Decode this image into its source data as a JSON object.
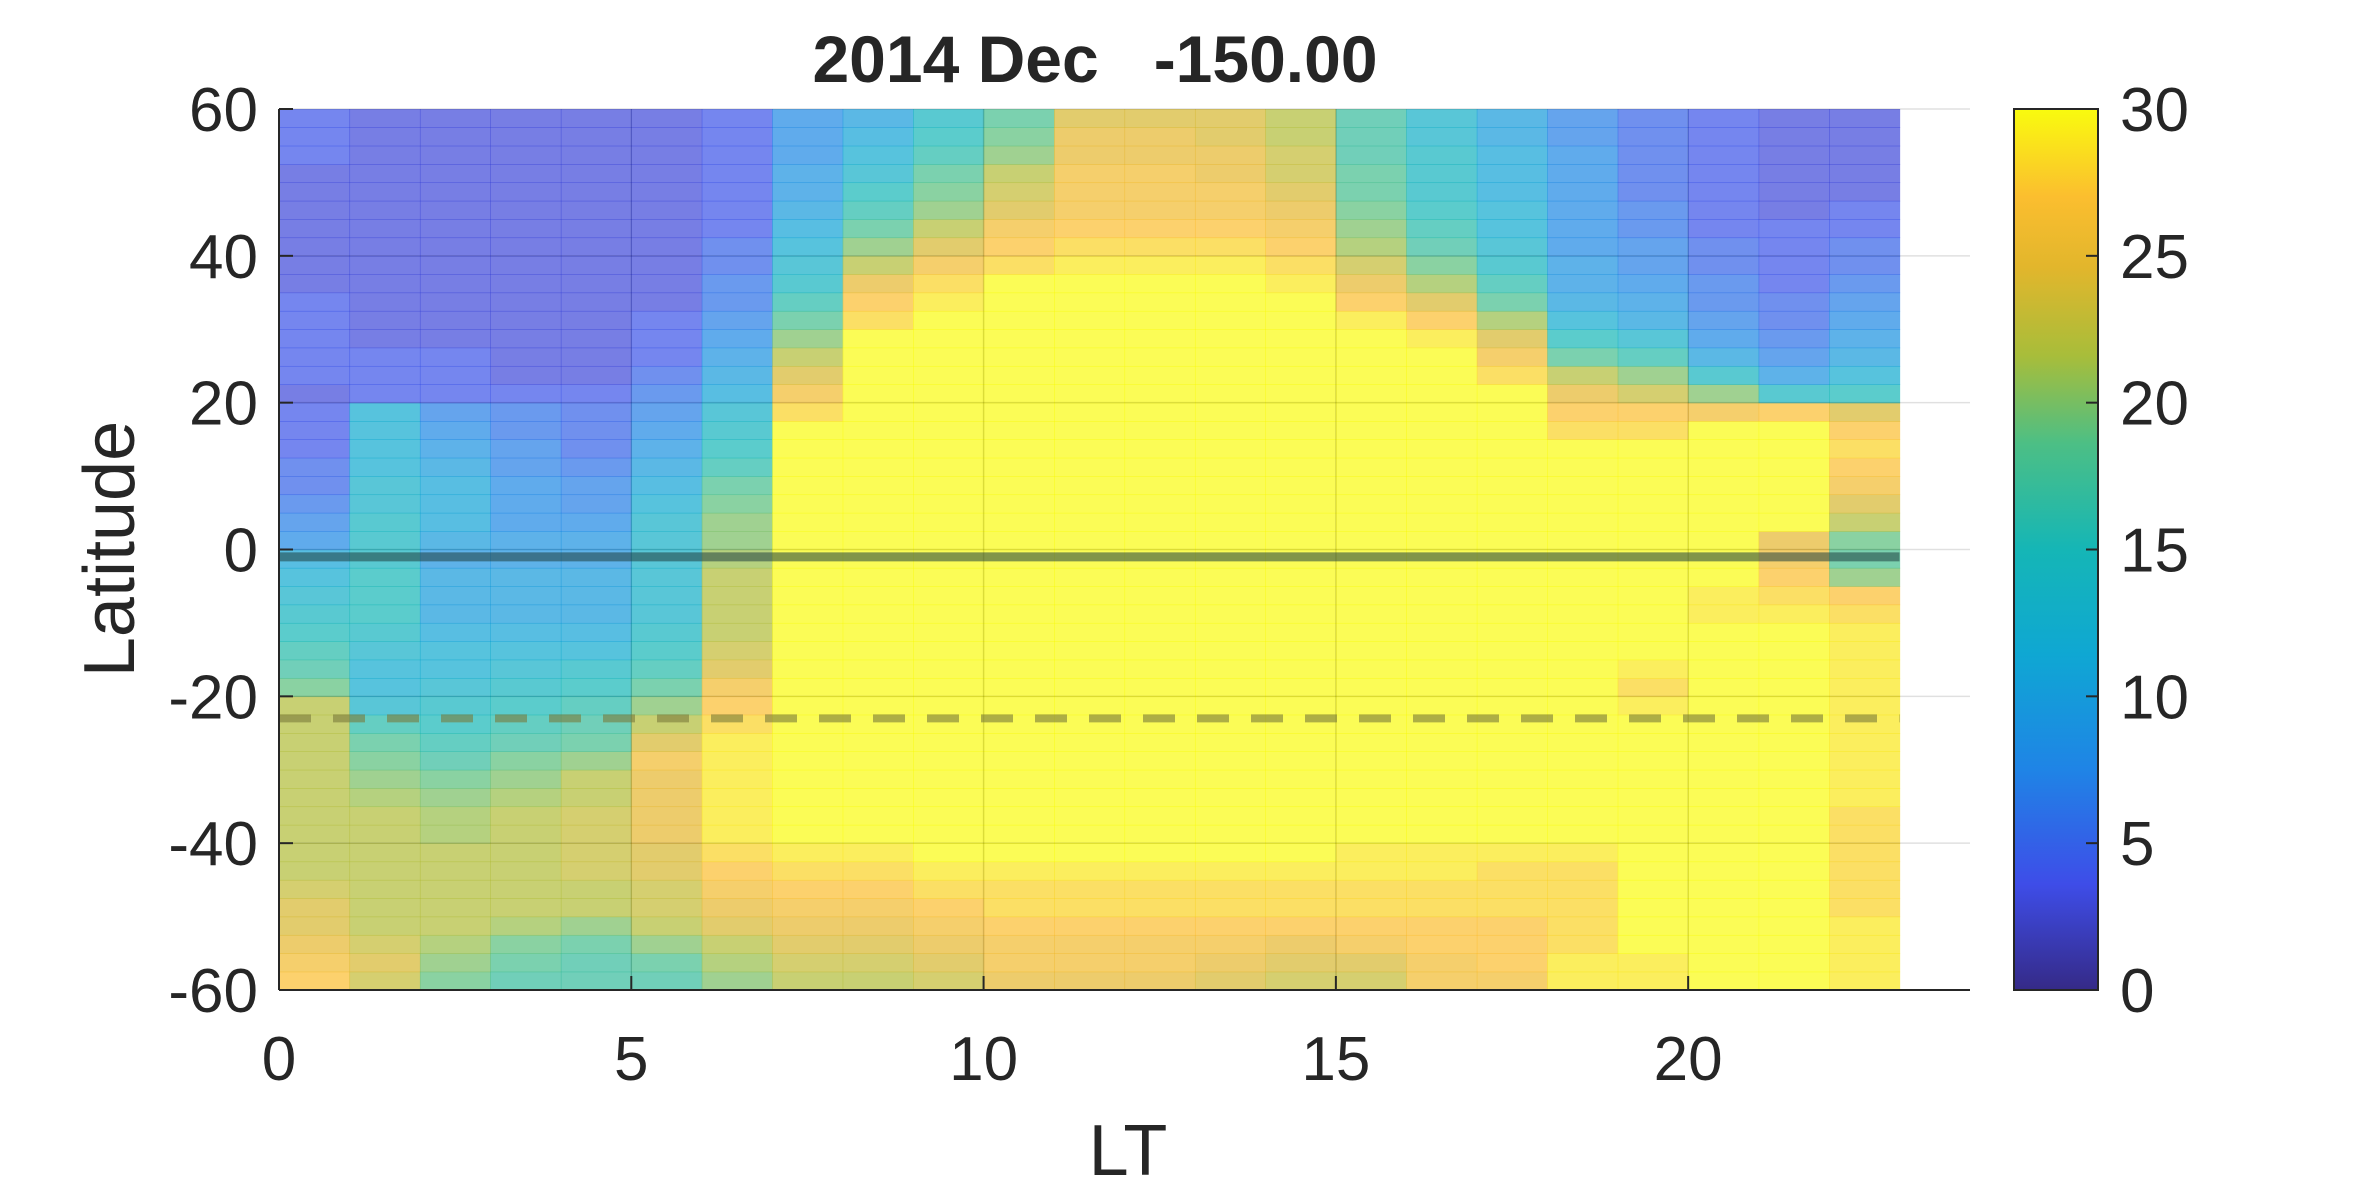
{
  "chart_data": {
    "type": "heatmap",
    "title": "2014 Dec   -150.00",
    "xlabel": "LT",
    "ylabel": "Latitude",
    "xlim": [
      0,
      24
    ],
    "ylim": [
      -60,
      60
    ],
    "x_ticks": [
      "0",
      "5",
      "10",
      "15",
      "20"
    ],
    "y_ticks": [
      "60",
      "40",
      "20",
      "0",
      "-20",
      "-40",
      "-60"
    ],
    "x_tick_values": [
      0,
      5,
      10,
      15,
      20
    ],
    "y_tick_values": [
      60,
      40,
      20,
      0,
      -20,
      -40,
      -60
    ],
    "x_bin_edges": [
      0,
      1,
      2,
      3,
      4,
      5,
      6,
      7,
      8,
      9,
      10,
      11,
      12,
      13,
      14,
      15,
      16,
      17,
      18,
      19,
      20,
      21,
      22,
      23
    ],
    "lat_bin_edges": [
      -60,
      55
    ],
    "grid": true,
    "colormap": "parula",
    "colorbar": {
      "min": 0,
      "max": 30,
      "ticks": [
        "0",
        "5",
        "10",
        "15",
        "20",
        "25",
        "30"
      ],
      "tick_values": [
        0,
        5,
        10,
        15,
        20,
        25,
        30
      ]
    },
    "reference_lines": [
      {
        "latitude": -1,
        "style": "solid",
        "color": "#1f3f3f"
      },
      {
        "latitude": -23,
        "style": "dashed",
        "color": "#7a7a3a"
      }
    ],
    "columns": [
      {
        "lt": 0,
        "values": [
          27,
          26,
          25,
          24,
          24,
          23,
          22,
          22,
          22,
          22,
          22,
          22,
          22,
          22,
          22,
          22,
          19,
          17,
          16,
          15,
          14,
          13,
          12,
          11,
          8,
          7,
          6,
          5,
          5,
          4,
          4,
          4,
          3,
          4,
          4,
          4,
          4,
          4,
          3,
          3,
          3,
          3,
          3,
          3,
          3,
          4,
          4,
          4
        ]
      },
      {
        "lt": 1,
        "values": [
          23,
          24,
          23,
          22,
          22,
          22,
          22,
          22,
          22,
          22,
          21,
          20,
          19,
          18,
          16,
          13,
          12,
          12,
          13,
          14,
          15,
          15,
          15,
          14,
          14,
          14,
          13,
          13,
          12,
          12,
          12,
          12,
          4,
          4,
          4,
          3,
          3,
          3,
          3,
          3,
          3,
          3,
          3,
          3,
          3,
          3,
          3,
          3
        ]
      },
      {
        "lt": 2,
        "values": [
          19,
          20,
          21,
          22,
          22,
          22,
          22,
          22,
          21,
          21,
          20,
          19,
          17,
          16,
          15,
          14,
          13,
          12,
          12,
          11,
          10,
          10,
          10,
          9,
          10,
          11,
          11,
          11,
          10,
          9,
          8,
          7,
          4,
          4,
          4,
          3,
          3,
          3,
          3,
          3,
          3,
          3,
          3,
          3,
          3,
          3,
          3,
          3
        ]
      },
      {
        "lt": 3,
        "values": [
          17,
          18,
          19,
          21,
          22,
          22,
          22,
          22,
          22,
          22,
          21,
          20,
          19,
          17,
          16,
          15,
          14,
          13,
          12,
          11,
          10,
          10,
          10,
          9,
          9,
          8,
          8,
          8,
          7,
          7,
          6,
          6,
          4,
          3,
          3,
          3,
          3,
          3,
          3,
          3,
          3,
          3,
          3,
          3,
          3,
          3,
          3,
          3
        ]
      },
      {
        "lt": 4,
        "values": [
          17,
          17,
          18,
          20,
          22,
          22,
          23,
          23,
          23,
          23,
          22,
          22,
          20,
          18,
          17,
          16,
          15,
          14,
          12,
          11,
          10,
          10,
          10,
          9,
          9,
          8,
          7,
          7,
          6,
          5,
          5,
          5,
          4,
          3,
          3,
          3,
          3,
          3,
          3,
          3,
          3,
          3,
          3,
          3,
          3,
          3,
          3,
          3
        ]
      },
      {
        "lt": 5,
        "values": [
          17,
          18,
          20,
          22,
          23,
          23,
          24,
          24,
          25,
          25,
          25,
          25,
          26,
          24,
          22,
          20,
          18,
          16,
          15,
          14,
          13,
          13,
          13,
          13,
          13,
          13,
          12,
          11,
          10,
          9,
          8,
          7,
          6,
          5,
          4,
          4,
          4,
          3,
          3,
          3,
          3,
          3,
          3,
          3,
          3,
          3,
          3,
          3
        ]
      },
      {
        "lt": 6,
        "values": [
          20,
          21,
          22,
          24,
          25,
          26,
          27,
          28,
          29,
          29,
          29,
          29,
          29,
          29,
          28,
          27,
          26,
          24,
          23,
          22,
          22,
          22,
          22,
          21,
          20,
          20,
          19,
          18,
          16,
          15,
          14,
          13,
          11,
          10,
          9,
          8,
          7,
          6,
          6,
          5,
          5,
          4,
          4,
          4,
          4,
          4,
          4,
          4
        ]
      },
      {
        "lt": 7,
        "values": [
          22,
          23,
          24,
          25,
          26,
          27,
          28,
          29,
          30,
          30,
          30,
          30,
          30,
          30,
          30,
          30,
          30,
          30,
          30,
          30,
          30,
          30,
          30,
          30,
          30,
          30,
          30,
          30,
          30,
          30,
          30,
          28,
          26,
          24,
          22,
          20,
          18,
          16,
          14,
          13,
          12,
          11,
          10,
          9,
          9,
          8,
          8,
          8
        ]
      },
      {
        "lt": 8,
        "values": [
          22,
          23,
          24,
          25,
          26,
          27,
          28,
          29,
          30,
          30,
          30,
          30,
          30,
          30,
          30,
          30,
          30,
          30,
          30,
          30,
          30,
          30,
          30,
          30,
          30,
          30,
          30,
          30,
          30,
          30,
          30,
          30,
          30,
          30,
          30,
          30,
          28,
          27,
          25,
          22,
          20,
          18,
          16,
          15,
          13,
          12,
          11,
          10
        ]
      },
      {
        "lt": 9,
        "values": [
          23,
          24,
          25,
          26,
          27,
          28,
          29,
          30,
          30,
          30,
          30,
          30,
          30,
          30,
          30,
          30,
          30,
          30,
          30,
          30,
          30,
          30,
          30,
          30,
          30,
          30,
          30,
          30,
          30,
          30,
          30,
          30,
          30,
          30,
          30,
          30,
          30,
          29,
          28,
          26,
          24,
          22,
          20,
          19,
          18,
          16,
          15,
          14
        ]
      },
      {
        "lt": 10,
        "values": [
          25,
          26,
          26,
          27,
          28,
          28,
          29,
          30,
          30,
          30,
          30,
          30,
          30,
          30,
          30,
          30,
          30,
          30,
          30,
          30,
          30,
          30,
          30,
          30,
          30,
          30,
          30,
          30,
          30,
          30,
          30,
          30,
          30,
          30,
          30,
          30,
          30,
          30,
          30,
          28,
          27,
          26,
          24,
          23,
          22,
          20,
          19,
          18
        ]
      },
      {
        "lt": 11,
        "values": [
          25,
          26,
          26,
          27,
          28,
          28,
          29,
          30,
          30,
          30,
          30,
          30,
          30,
          30,
          30,
          30,
          30,
          30,
          30,
          30,
          30,
          30,
          30,
          30,
          30,
          30,
          30,
          30,
          30,
          30,
          30,
          30,
          30,
          30,
          30,
          30,
          30,
          30,
          30,
          29,
          28,
          27,
          26,
          26,
          26,
          25,
          25,
          24
        ]
      },
      {
        "lt": 12,
        "values": [
          25,
          26,
          26,
          27,
          28,
          28,
          29,
          30,
          30,
          30,
          30,
          30,
          30,
          30,
          30,
          30,
          30,
          30,
          30,
          30,
          30,
          30,
          30,
          30,
          30,
          30,
          30,
          30,
          30,
          30,
          30,
          30,
          30,
          30,
          30,
          30,
          30,
          30,
          30,
          29,
          28,
          27,
          26,
          26,
          26,
          25,
          25,
          24
        ]
      },
      {
        "lt": 13,
        "values": [
          24,
          25,
          26,
          27,
          28,
          28,
          29,
          30,
          30,
          30,
          30,
          30,
          30,
          30,
          30,
          30,
          30,
          30,
          30,
          30,
          30,
          30,
          30,
          30,
          30,
          30,
          30,
          30,
          30,
          30,
          30,
          30,
          30,
          30,
          30,
          30,
          30,
          30,
          30,
          29,
          28,
          27,
          26,
          26,
          25,
          25,
          24,
          24
        ]
      },
      {
        "lt": 14,
        "values": [
          23,
          24,
          25,
          27,
          28,
          28,
          29,
          30,
          30,
          30,
          30,
          30,
          30,
          30,
          30,
          30,
          30,
          30,
          30,
          30,
          30,
          30,
          30,
          30,
          30,
          30,
          30,
          30,
          30,
          30,
          30,
          30,
          30,
          30,
          30,
          30,
          30,
          30,
          29,
          28,
          27,
          26,
          25,
          24,
          23,
          23,
          22,
          22
        ]
      },
      {
        "lt": 15,
        "values": [
          23,
          24,
          26,
          27,
          28,
          28,
          29,
          29,
          30,
          30,
          30,
          30,
          30,
          30,
          30,
          30,
          30,
          30,
          30,
          30,
          30,
          30,
          30,
          30,
          30,
          30,
          30,
          30,
          30,
          30,
          30,
          30,
          30,
          30,
          30,
          30,
          29,
          27,
          25,
          23,
          21,
          20,
          19,
          18,
          18,
          17,
          17,
          17
        ]
      },
      {
        "lt": 16,
        "values": [
          26,
          26,
          27,
          27,
          28,
          28,
          29,
          29,
          30,
          30,
          30,
          30,
          30,
          30,
          30,
          30,
          30,
          30,
          30,
          30,
          30,
          30,
          30,
          30,
          30,
          30,
          30,
          30,
          30,
          30,
          30,
          30,
          30,
          30,
          30,
          29,
          27,
          24,
          21,
          19,
          17,
          16,
          15,
          14,
          14,
          14,
          13,
          13
        ]
      },
      {
        "lt": 17,
        "values": [
          26,
          27,
          27,
          27,
          28,
          28,
          28,
          29,
          30,
          30,
          30,
          30,
          30,
          30,
          30,
          30,
          30,
          30,
          30,
          30,
          30,
          30,
          30,
          30,
          30,
          30,
          30,
          30,
          30,
          30,
          30,
          30,
          30,
          28,
          26,
          24,
          21,
          18,
          16,
          14,
          13,
          12,
          12,
          11,
          11,
          11,
          10,
          10
        ]
      },
      {
        "lt": 18,
        "values": [
          29,
          29,
          28,
          28,
          28,
          28,
          28,
          29,
          30,
          30,
          30,
          30,
          30,
          30,
          30,
          30,
          30,
          30,
          30,
          30,
          30,
          30,
          30,
          30,
          30,
          30,
          30,
          30,
          30,
          30,
          28,
          27,
          25,
          22,
          18,
          15,
          12,
          10,
          9,
          9,
          8,
          8,
          8,
          8,
          8,
          8,
          7,
          7
        ]
      },
      {
        "lt": 19,
        "values": [
          29,
          29,
          30,
          30,
          30,
          30,
          30,
          30,
          30,
          30,
          30,
          30,
          30,
          30,
          30,
          29,
          28,
          29,
          30,
          30,
          30,
          30,
          30,
          30,
          30,
          30,
          30,
          30,
          30,
          30,
          28,
          27,
          23,
          20,
          16,
          13,
          10,
          9,
          8,
          7,
          7,
          6,
          6,
          5,
          5,
          5,
          5,
          5
        ]
      },
      {
        "lt": 20,
        "values": [
          30,
          30,
          30,
          30,
          30,
          30,
          30,
          30,
          30,
          30,
          30,
          30,
          30,
          30,
          30,
          30,
          30,
          30,
          30,
          30,
          29,
          29,
          30,
          30,
          30,
          30,
          30,
          30,
          30,
          30,
          30,
          26,
          20,
          14,
          10,
          8,
          7,
          6,
          6,
          5,
          5,
          4,
          4,
          4,
          4,
          4,
          4,
          4
        ]
      },
      {
        "lt": 21,
        "values": [
          30,
          30,
          30,
          30,
          30,
          30,
          30,
          30,
          30,
          30,
          30,
          30,
          30,
          30,
          30,
          30,
          30,
          30,
          30,
          30,
          29,
          28,
          27,
          26,
          25,
          30,
          30,
          30,
          30,
          30,
          30,
          27,
          14,
          9,
          7,
          6,
          5,
          5,
          4,
          4,
          4,
          4,
          3,
          3,
          3,
          3,
          3,
          3
        ]
      },
      {
        "lt": 22,
        "values": [
          29,
          29,
          29,
          29,
          28,
          28,
          28,
          28,
          28,
          28,
          29,
          29,
          29,
          29,
          29,
          29,
          29,
          29,
          29,
          29,
          28,
          27,
          20,
          18,
          19,
          22,
          24,
          26,
          27,
          28,
          27,
          24,
          15,
          12,
          10,
          9,
          8,
          7,
          6,
          5,
          5,
          4,
          4,
          3,
          3,
          3,
          3,
          3
        ]
      }
    ]
  }
}
